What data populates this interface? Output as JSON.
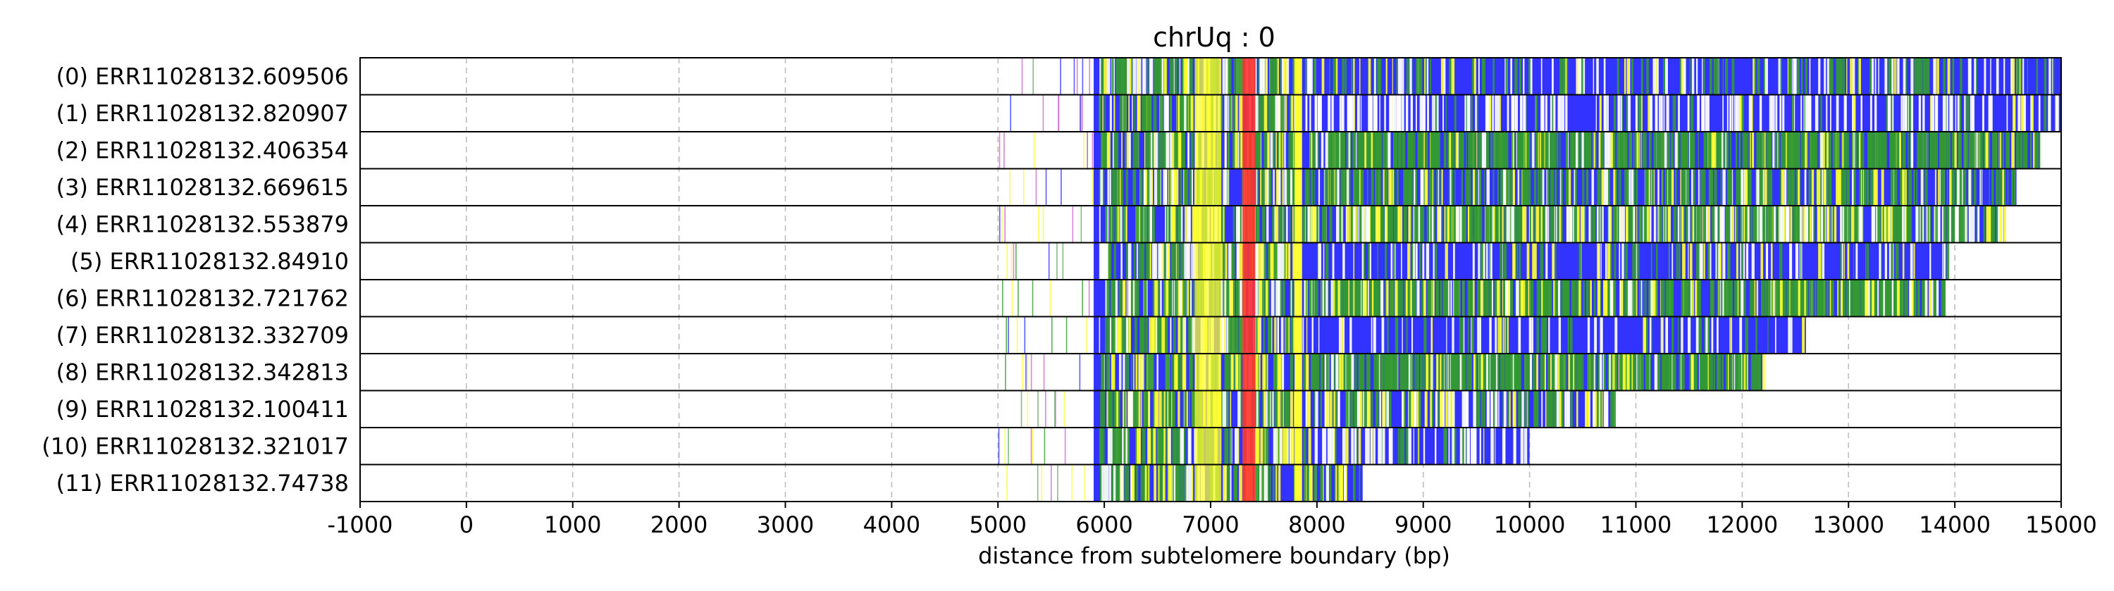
{
  "chart_data": {
    "type": "bar",
    "title": "chrUq : 0",
    "xlabel": "distance from subtelomere boundary (bp)",
    "ylabel": "",
    "xlim": [
      -1000,
      15000
    ],
    "xticks": [
      -1000,
      0,
      1000,
      2000,
      3000,
      4000,
      5000,
      6000,
      7000,
      8000,
      9000,
      10000,
      11000,
      12000,
      13000,
      14000,
      15000
    ],
    "grid": true,
    "colors": {
      "blue": "#3333ff",
      "green": "#339933",
      "yellow": "#ffff33",
      "red": "#ff3333",
      "white": "#ffffff",
      "gray": "#bdbdbd"
    },
    "reads": [
      {
        "label": "(0) ERR11028132.609506",
        "end": 15000,
        "green": 0.08,
        "white": 0.06,
        "yellow": 0.03
      },
      {
        "label": "(1) ERR11028132.820907",
        "end": 15000,
        "green": 0.04,
        "white": 0.18,
        "yellow": 0.02
      },
      {
        "label": "(2) ERR11028132.406354",
        "end": 14830,
        "green": 0.42,
        "white": 0.05,
        "yellow": 0.06
      },
      {
        "label": "(3) ERR11028132.669615",
        "end": 14580,
        "green": 0.22,
        "white": 0.06,
        "yellow": 0.04
      },
      {
        "label": "(4) ERR11028132.553879",
        "end": 14460,
        "green": 0.28,
        "white": 0.18,
        "yellow": 0.1
      },
      {
        "label": "(5) ERR11028132.84910",
        "end": 13930,
        "green": 0.06,
        "white": 0.07,
        "yellow": 0.02
      },
      {
        "label": "(6) ERR11028132.721762",
        "end": 13900,
        "green": 0.4,
        "white": 0.06,
        "yellow": 0.1
      },
      {
        "label": "(7) ERR11028132.332709",
        "end": 12600,
        "green": 0.05,
        "white": 0.06,
        "yellow": 0.02
      },
      {
        "label": "(8) ERR11028132.342813",
        "end": 12190,
        "green": 0.4,
        "white": 0.05,
        "yellow": 0.06
      },
      {
        "label": "(9) ERR11028132.100411",
        "end": 10790,
        "green": 0.12,
        "white": 0.12,
        "yellow": 0.08
      },
      {
        "label": "(10) ERR11028132.321017",
        "end": 10000,
        "green": 0.08,
        "white": 0.15,
        "yellow": 0.04
      },
      {
        "label": "(11) ERR11028132.74738",
        "end": 8430,
        "green": 0.2,
        "white": 0.06,
        "yellow": 0.08
      }
    ]
  }
}
